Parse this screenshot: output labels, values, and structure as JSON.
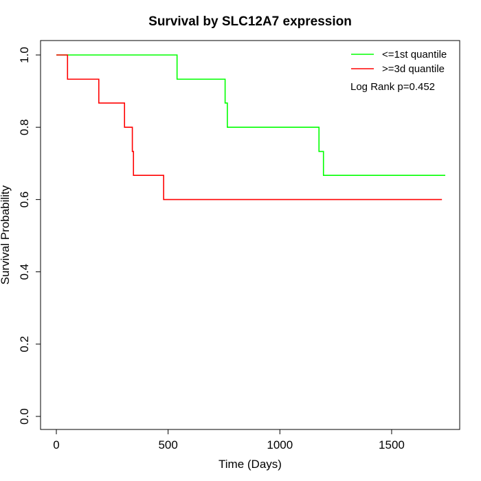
{
  "chart_data": {
    "type": "line",
    "title": "Survival by SLC12A7 expression",
    "xlabel": "Time (Days)",
    "ylabel": "Survival Probability",
    "xlim": [
      0,
      1800
    ],
    "ylim": [
      0,
      1
    ],
    "xticks": [
      0,
      500,
      1000,
      1500
    ],
    "xtick_labels": [
      "0",
      "500",
      "1000",
      "1500"
    ],
    "yticks": [
      0,
      0.2,
      0.4,
      0.6,
      0.8,
      1
    ],
    "ytick_labels": [
      "0.0",
      "0.2",
      "0.4",
      "0.6",
      "0.8",
      "1.0"
    ],
    "grid": false,
    "legend_position": "top-right",
    "annotation": "Log Rank p=0.452",
    "series": [
      {
        "name": "<=1st quantile",
        "color": "#00ff00",
        "step": true,
        "x": [
          0,
          540,
          755,
          765,
          1175,
          1195,
          1740
        ],
        "y": [
          1.0,
          0.933,
          0.867,
          0.8,
          0.733,
          0.667,
          0.667
        ]
      },
      {
        "name": ">=3d quantile",
        "color": "#ff0000",
        "step": true,
        "x": [
          0,
          50,
          190,
          305,
          340,
          345,
          480,
          1725
        ],
        "y": [
          1.0,
          0.933,
          0.867,
          0.8,
          0.733,
          0.667,
          0.6,
          0.6
        ]
      }
    ]
  }
}
